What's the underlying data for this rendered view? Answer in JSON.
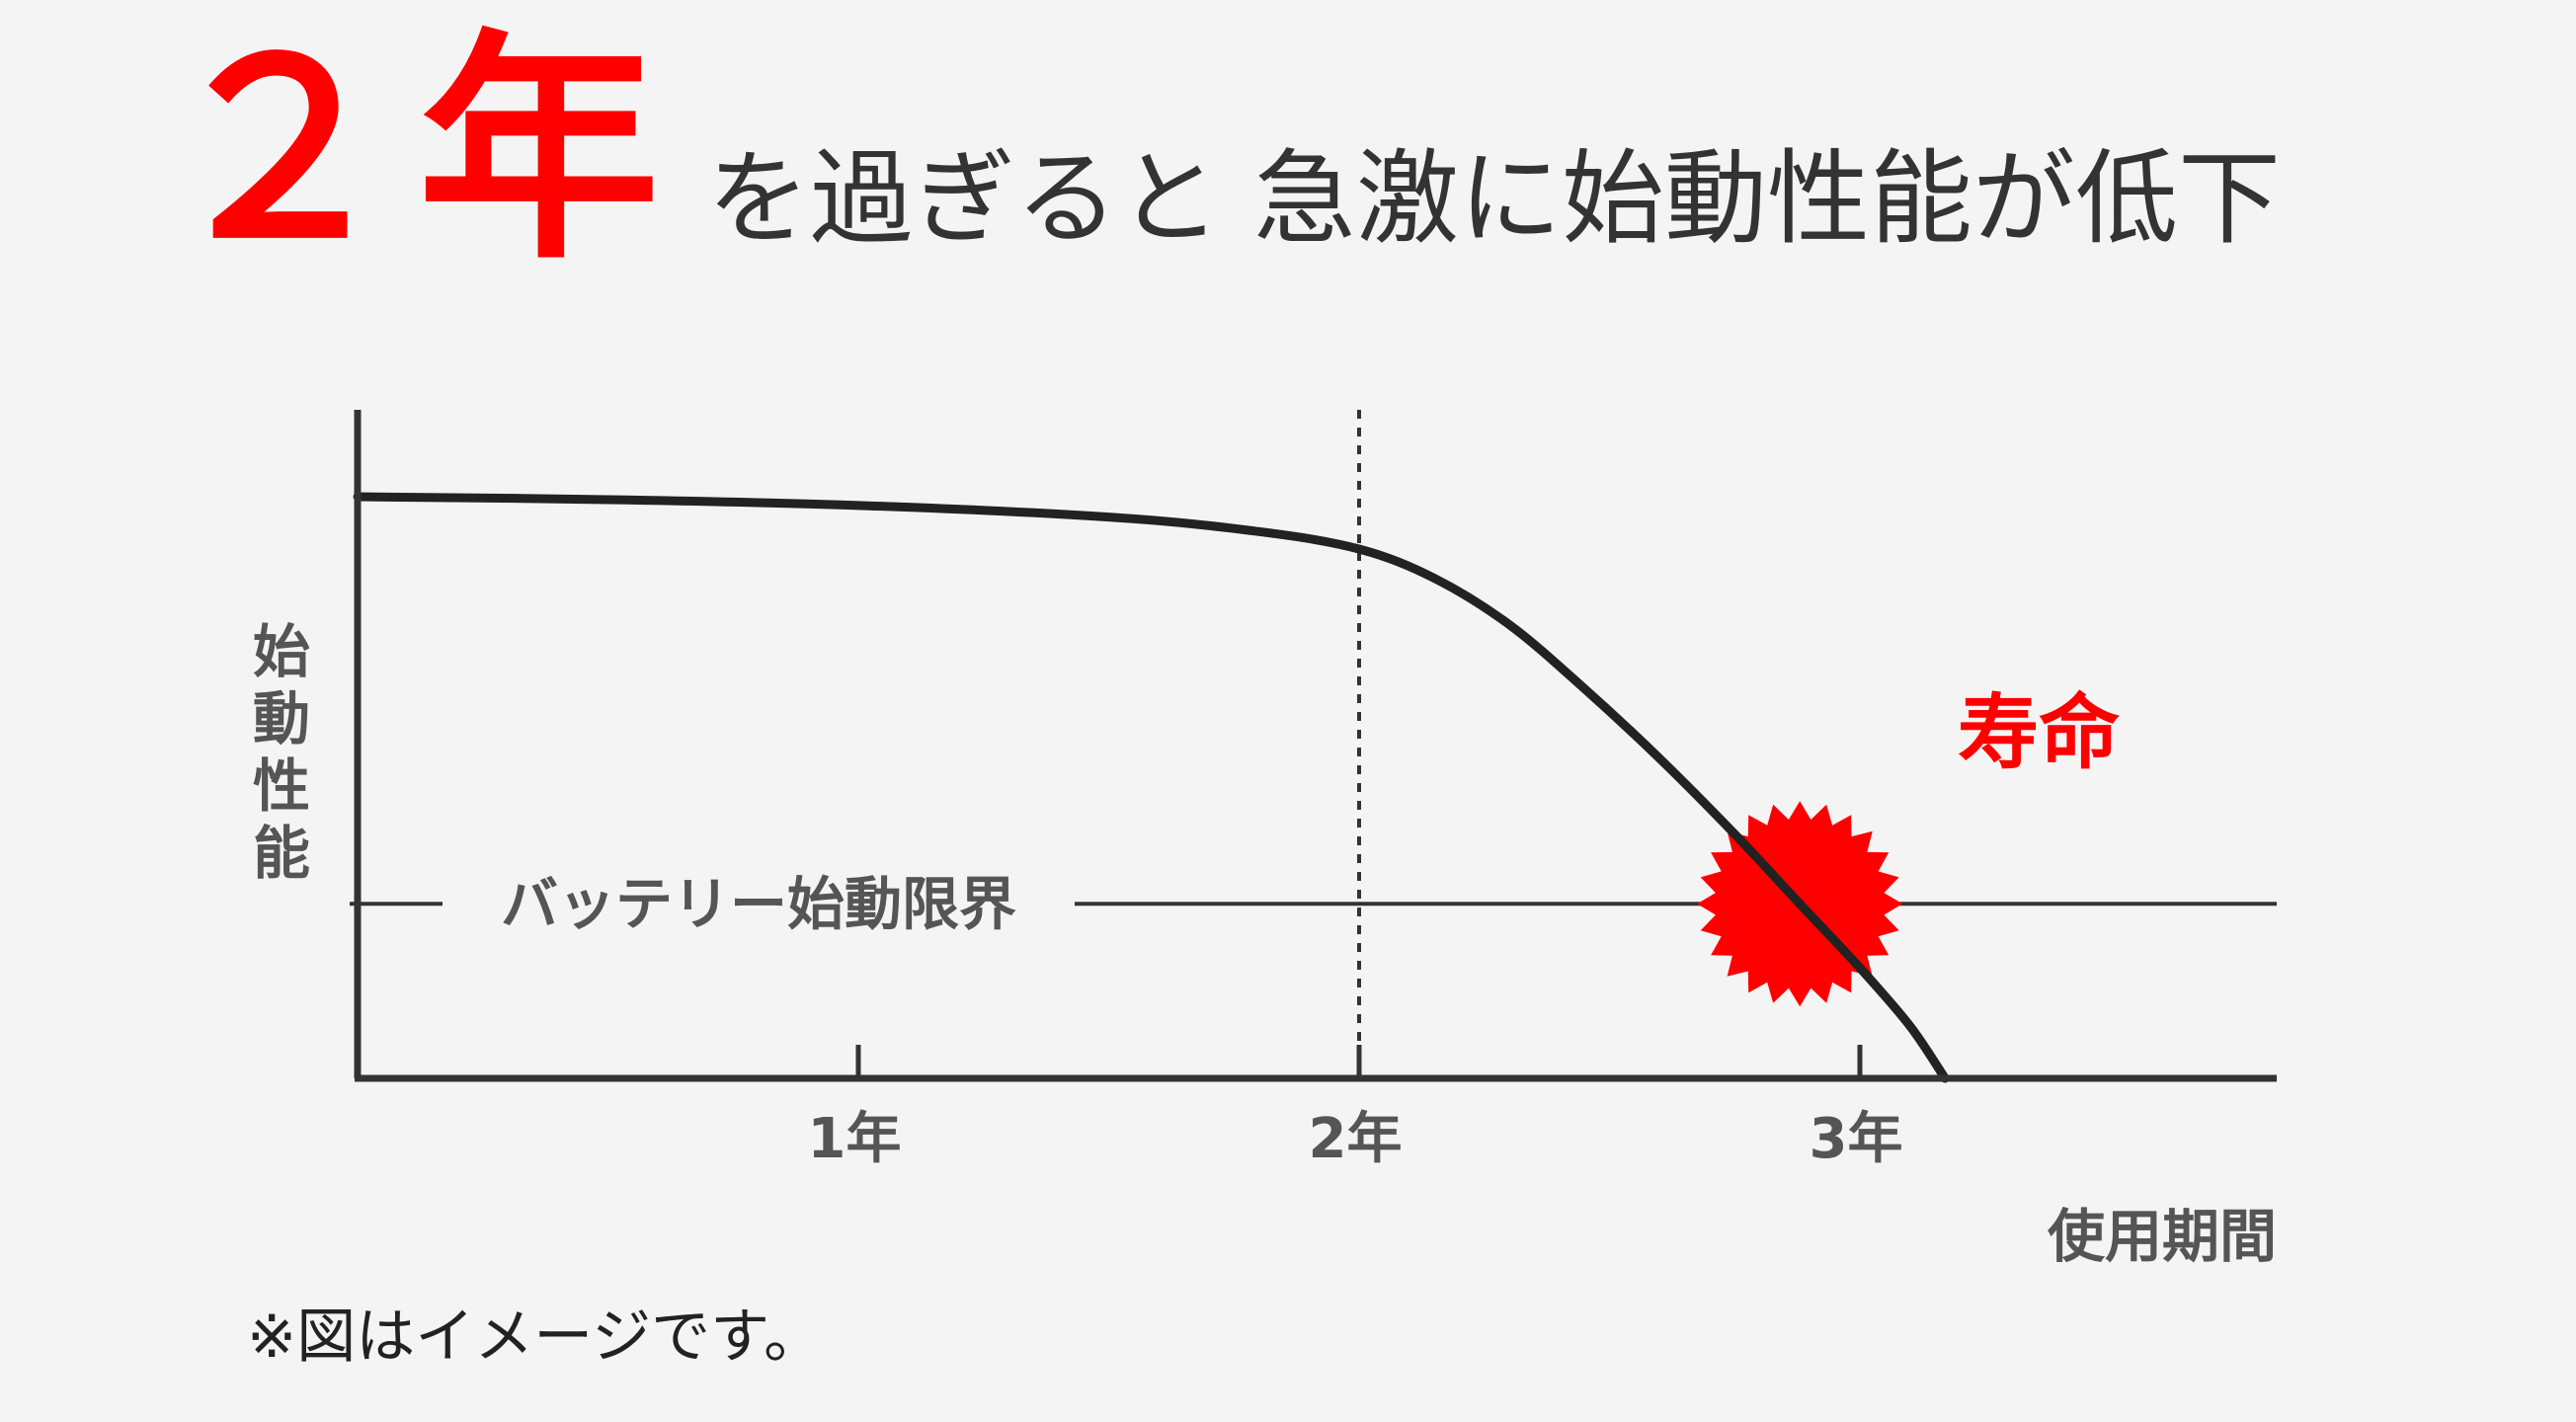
{
  "headline": {
    "emphasis": "２年",
    "rest": "を過ぎると 急激に始動性能が低下"
  },
  "footnote": "※図はイメージです。",
  "colors": {
    "accent": "#ff0000",
    "curve": "#222222",
    "axis": "#333333",
    "label": "#555555",
    "background": "#f4f4f4"
  },
  "chart_data": {
    "type": "line",
    "title": "",
    "xlabel": "使用期間",
    "ylabel": "始動性能",
    "xticks": [
      {
        "value": 1,
        "label": "1年"
      },
      {
        "value": 2,
        "label": "2年"
      },
      {
        "value": 3,
        "label": "3年"
      }
    ],
    "xlim": [
      0,
      3.7
    ],
    "ylim": [
      0,
      1.22
    ],
    "grid": false,
    "series": [
      {
        "name": "",
        "x": [
          0,
          0.5,
          1.0,
          1.5,
          1.8,
          2.0,
          2.15,
          2.3,
          2.45,
          2.6,
          2.75,
          2.88,
          3.0,
          3.1,
          3.17
        ],
        "y": [
          1.0,
          0.995,
          0.985,
          0.965,
          0.94,
          0.91,
          0.86,
          0.78,
          0.67,
          0.55,
          0.42,
          0.3,
          0.19,
          0.09,
          0.0
        ]
      }
    ],
    "threshold": {
      "y": 0.3,
      "label": "バッテリー始動限界"
    },
    "reference_line": {
      "x": 2,
      "style": "dotted"
    },
    "annotation": {
      "x": 2.88,
      "y": 0.3,
      "label": "寿命",
      "marker": "red-starburst"
    }
  }
}
